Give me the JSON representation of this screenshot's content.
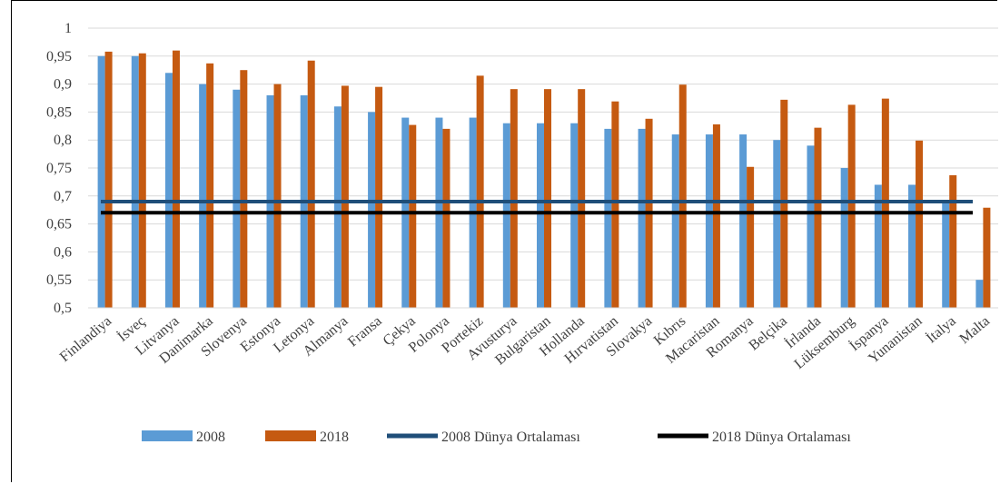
{
  "chart_data": {
    "type": "bar",
    "categories": [
      "Finlandiya",
      "İsveç",
      "Litvanya",
      "Danimarka",
      "Slovenya",
      "Estonya",
      "Letonya",
      "Almanya",
      "Fransa",
      "Çekya",
      "Polonya",
      "Portekiz",
      "Avusturya",
      "Bulgaristan",
      "Hollanda",
      "Hırvatistan",
      "Slovakya",
      "Kıbrıs",
      "Macaristan",
      "Romanya",
      "Belçika",
      "İrlanda",
      "Lüksemburg",
      "İspanya",
      "Yunanistan",
      "İtalya",
      "Malta"
    ],
    "series": [
      {
        "name": "2008",
        "color": "#5B9BD5",
        "values": [
          0.95,
          0.95,
          0.92,
          0.9,
          0.89,
          0.88,
          0.88,
          0.86,
          0.85,
          0.84,
          0.84,
          0.84,
          0.83,
          0.83,
          0.83,
          0.82,
          0.82,
          0.81,
          0.81,
          0.81,
          0.8,
          0.79,
          0.75,
          0.72,
          0.72,
          0.69,
          0.55
        ]
      },
      {
        "name": "2018",
        "color": "#C55A11",
        "values": [
          0.958,
          0.955,
          0.96,
          0.937,
          0.925,
          0.9,
          0.942,
          0.897,
          0.895,
          0.827,
          0.82,
          0.915,
          0.891,
          0.891,
          0.891,
          0.869,
          0.838,
          0.899,
          0.828,
          0.752,
          0.872,
          0.822,
          0.863,
          0.874,
          0.799,
          0.737,
          0.679
        ]
      }
    ],
    "reference_lines": [
      {
        "name": "2008 Dünya Ortalaması",
        "value": 0.69,
        "color": "#1F4E79"
      },
      {
        "name": "2018 Dünya Ortalaması",
        "value": 0.67,
        "color": "#000000"
      }
    ],
    "yticks": [
      "0,5",
      "0,55",
      "0,6",
      "0,65",
      "0,7",
      "0,75",
      "0,8",
      "0,85",
      "0,9",
      "0,95",
      "1"
    ],
    "ylim": [
      0.5,
      1.0
    ],
    "grid": true,
    "legend_position": "bottom",
    "title": "",
    "xlabel": "",
    "ylabel": ""
  }
}
